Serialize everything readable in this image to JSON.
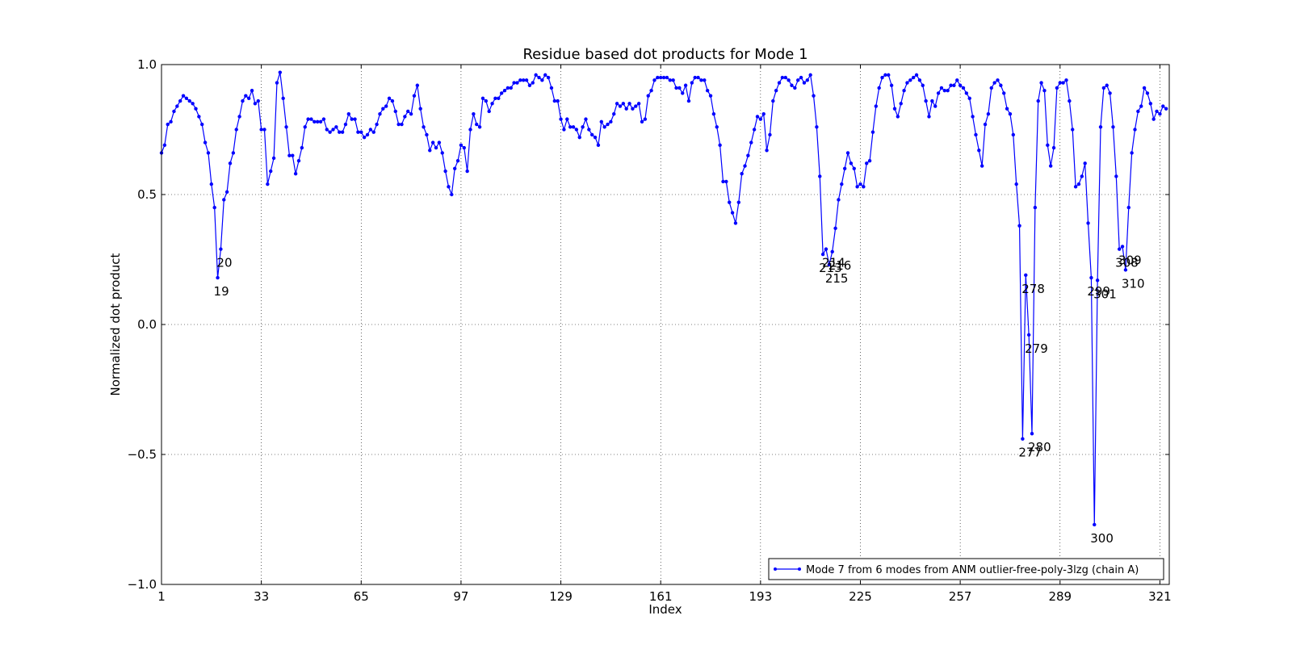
{
  "chart_data": {
    "type": "line",
    "title": "Residue based dot products for Mode 1",
    "xlabel": "Index",
    "ylabel": "Normalized dot product",
    "xlim": [
      1,
      324
    ],
    "ylim": [
      -1.0,
      1.0
    ],
    "xticks": [
      1,
      33,
      65,
      97,
      129,
      161,
      193,
      225,
      257,
      289,
      321
    ],
    "yticks": [
      1.0,
      0.5,
      0.0,
      -0.5,
      -1.0
    ],
    "ytick_labels": [
      "1.0",
      "0.5",
      "0.0",
      "−0.5",
      "−1.0"
    ],
    "grid": true,
    "legend_position": "lower-right",
    "series": [
      {
        "name": "Mode 7 from 6 modes from ANM outlier-free-poly-3lzg (chain A)",
        "color": "#0000ff",
        "marker": "dot",
        "y": [
          0.66,
          0.69,
          0.77,
          0.78,
          0.82,
          0.84,
          0.86,
          0.88,
          0.87,
          0.86,
          0.85,
          0.83,
          0.8,
          0.77,
          0.7,
          0.66,
          0.54,
          0.45,
          0.18,
          0.29,
          0.48,
          0.51,
          0.62,
          0.66,
          0.75,
          0.8,
          0.86,
          0.88,
          0.87,
          0.9,
          0.85,
          0.86,
          0.75,
          0.75,
          0.54,
          0.59,
          0.64,
          0.93,
          0.97,
          0.87,
          0.76,
          0.65,
          0.65,
          0.58,
          0.63,
          0.68,
          0.76,
          0.79,
          0.79,
          0.78,
          0.78,
          0.78,
          0.79,
          0.75,
          0.74,
          0.75,
          0.76,
          0.74,
          0.74,
          0.77,
          0.81,
          0.79,
          0.79,
          0.74,
          0.74,
          0.72,
          0.73,
          0.75,
          0.74,
          0.77,
          0.81,
          0.83,
          0.84,
          0.87,
          0.86,
          0.82,
          0.77,
          0.77,
          0.8,
          0.82,
          0.81,
          0.88,
          0.92,
          0.83,
          0.76,
          0.73,
          0.67,
          0.7,
          0.68,
          0.7,
          0.66,
          0.59,
          0.53,
          0.5,
          0.6,
          0.63,
          0.69,
          0.68,
          0.59,
          0.75,
          0.81,
          0.77,
          0.76,
          0.87,
          0.86,
          0.82,
          0.85,
          0.87,
          0.87,
          0.89,
          0.9,
          0.91,
          0.91,
          0.93,
          0.93,
          0.94,
          0.94,
          0.94,
          0.92,
          0.93,
          0.96,
          0.95,
          0.94,
          0.96,
          0.95,
          0.91,
          0.86,
          0.86,
          0.79,
          0.75,
          0.79,
          0.76,
          0.76,
          0.75,
          0.72,
          0.76,
          0.79,
          0.75,
          0.73,
          0.72,
          0.69,
          0.78,
          0.76,
          0.77,
          0.78,
          0.81,
          0.85,
          0.84,
          0.85,
          0.83,
          0.85,
          0.83,
          0.84,
          0.85,
          0.78,
          0.79,
          0.88,
          0.9,
          0.94,
          0.95,
          0.95,
          0.95,
          0.95,
          0.94,
          0.94,
          0.91,
          0.91,
          0.89,
          0.92,
          0.86,
          0.93,
          0.95,
          0.95,
          0.94,
          0.94,
          0.9,
          0.88,
          0.81,
          0.76,
          0.69,
          0.55,
          0.55,
          0.47,
          0.43,
          0.39,
          0.47,
          0.58,
          0.61,
          0.65,
          0.7,
          0.75,
          0.8,
          0.79,
          0.81,
          0.67,
          0.73,
          0.86,
          0.9,
          0.93,
          0.95,
          0.95,
          0.94,
          0.92,
          0.91,
          0.94,
          0.95,
          0.93,
          0.94,
          0.96,
          0.88,
          0.76,
          0.57,
          0.27,
          0.29,
          0.23,
          0.28,
          0.37,
          0.48,
          0.54,
          0.6,
          0.66,
          0.62,
          0.6,
          0.53,
          0.54,
          0.53,
          0.62,
          0.63,
          0.74,
          0.84,
          0.91,
          0.95,
          0.96,
          0.96,
          0.92,
          0.83,
          0.8,
          0.85,
          0.9,
          0.93,
          0.94,
          0.95,
          0.96,
          0.94,
          0.92,
          0.86,
          0.8,
          0.86,
          0.84,
          0.89,
          0.91,
          0.9,
          0.9,
          0.92,
          0.92,
          0.94,
          0.92,
          0.91,
          0.89,
          0.87,
          0.8,
          0.73,
          0.67,
          0.61,
          0.77,
          0.81,
          0.91,
          0.93,
          0.94,
          0.92,
          0.89,
          0.83,
          0.81,
          0.73,
          0.54,
          0.38,
          -0.44,
          0.19,
          -0.04,
          -0.42,
          0.45,
          0.86,
          0.93,
          0.9,
          0.69,
          0.61,
          0.68,
          0.91,
          0.93,
          0.93,
          0.94,
          0.86,
          0.75,
          0.53,
          0.54,
          0.57,
          0.62,
          0.39,
          0.18,
          -0.77,
          0.17,
          0.76,
          0.91,
          0.92,
          0.89,
          0.76,
          0.57,
          0.29,
          0.3,
          0.21,
          0.45,
          0.66,
          0.75,
          0.82,
          0.84,
          0.91,
          0.89,
          0.85,
          0.79,
          0.82,
          0.81,
          0.84,
          0.83
        ]
      }
    ],
    "annotations": [
      {
        "text": "19",
        "x": 19,
        "y": 0.18
      },
      {
        "text": "20",
        "x": 20,
        "y": 0.29
      },
      {
        "text": "213",
        "x": 213,
        "y": 0.27
      },
      {
        "text": "214",
        "x": 214,
        "y": 0.29
      },
      {
        "text": "215",
        "x": 215,
        "y": 0.23
      },
      {
        "text": "216",
        "x": 216,
        "y": 0.28
      },
      {
        "text": "277",
        "x": 277,
        "y": -0.44
      },
      {
        "text": "278",
        "x": 278,
        "y": 0.19
      },
      {
        "text": "279",
        "x": 279,
        "y": -0.04
      },
      {
        "text": "280",
        "x": 280,
        "y": -0.42
      },
      {
        "text": "299",
        "x": 299,
        "y": 0.18
      },
      {
        "text": "300",
        "x": 300,
        "y": -0.77
      },
      {
        "text": "301",
        "x": 301,
        "y": 0.17
      },
      {
        "text": "308",
        "x": 308,
        "y": 0.29
      },
      {
        "text": "309",
        "x": 309,
        "y": 0.3
      },
      {
        "text": "310",
        "x": 310,
        "y": 0.21
      }
    ]
  }
}
